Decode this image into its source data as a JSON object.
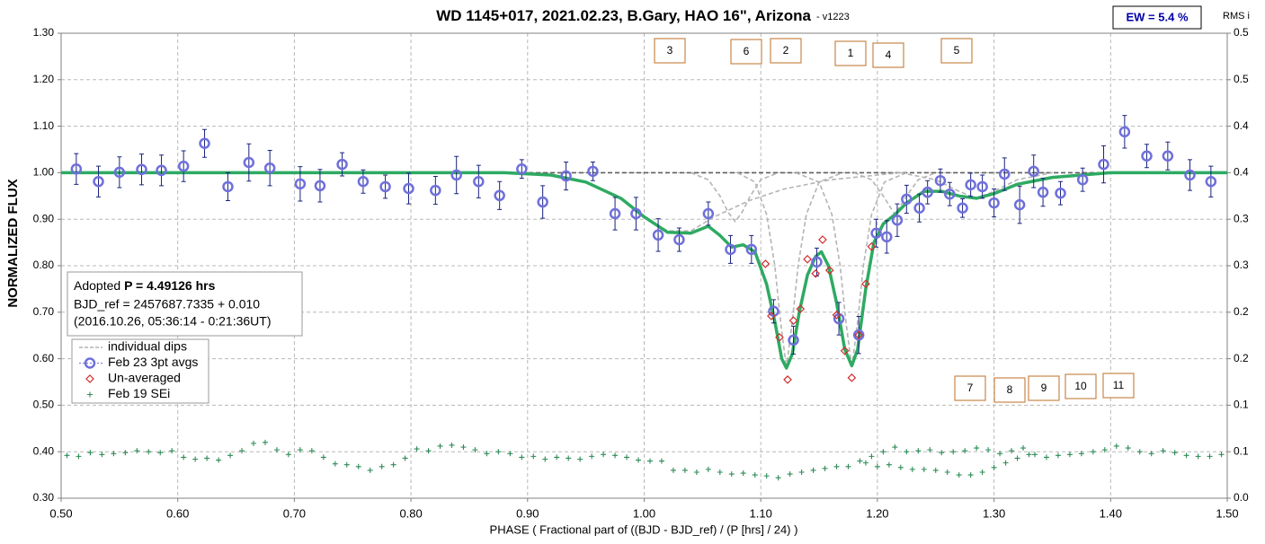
{
  "chart_data": {
    "type": "scatter",
    "title": "WD 1145+017, 2021.02.23, B.Gary, HAO 16\", Arizona",
    "title_suffix": "-  v1223",
    "ew_label": "EW = 5.4 %",
    "y2_label": "RMS i",
    "y_label": "NORMALIZED FLUX",
    "x_label": "PHASE ( Fractional part of ((BJD - BJD_ref) / (P [hrs] / 24) )",
    "info": {
      "adopted": "Adopted ",
      "period": "P = 4.49126 hrs",
      "bjd_ref": "BJD_ref = 2457687.7335 + 0.010",
      "date": "(2016.10.26, 05:36:14 - 0:21:36UT)"
    },
    "dip_labels": [
      "3",
      "6",
      "2",
      "1",
      "4",
      "5",
      "7",
      "8",
      "9",
      "10",
      "11"
    ],
    "grid": true,
    "legend": "lower left",
    "xlim": [
      0.5,
      1.5
    ],
    "xticks": [
      {
        "value": 0.5,
        "label": "0.50"
      },
      {
        "value": 0.6,
        "label": "0.60"
      },
      {
        "value": 0.7,
        "label": "0.70"
      },
      {
        "value": 0.8,
        "label": "0.80"
      },
      {
        "value": 0.9,
        "label": "0.90"
      },
      {
        "value": 1.0,
        "label": "1.00"
      },
      {
        "value": 1.1,
        "label": "1.10"
      },
      {
        "value": 1.2,
        "label": "1.20"
      },
      {
        "value": 1.3,
        "label": "1.30"
      },
      {
        "value": 1.4,
        "label": "1.40"
      },
      {
        "value": 1.5,
        "label": "1.50"
      }
    ],
    "ylim": [
      0.3,
      1.3
    ],
    "yticks": [
      {
        "value": 0.3,
        "label": "0.30"
      },
      {
        "value": 0.4,
        "label": "0.40"
      },
      {
        "value": 0.5,
        "label": "0.50"
      },
      {
        "value": 0.6,
        "label": "0.60"
      },
      {
        "value": 0.7,
        "label": "0.70"
      },
      {
        "value": 0.8,
        "label": "0.80"
      },
      {
        "value": 0.9,
        "label": "0.90"
      },
      {
        "value": 1.0,
        "label": "1.00"
      },
      {
        "value": 1.1,
        "label": "1.10"
      },
      {
        "value": 1.2,
        "label": "1.20"
      },
      {
        "value": 1.3,
        "label": "1.30"
      }
    ],
    "y2lim": [
      0,
      0.5
    ],
    "y2ticks": [
      {
        "value": 0,
        "label": "0.0"
      },
      {
        "value": 0.05,
        "label": "0.1"
      },
      {
        "value": 0.1,
        "label": "0.1"
      },
      {
        "value": 0.15,
        "label": "0.2"
      },
      {
        "value": 0.2,
        "label": "0.2"
      },
      {
        "value": 0.25,
        "label": "0.3"
      },
      {
        "value": 0.3,
        "label": "0.3"
      },
      {
        "value": 0.35,
        "label": "0.4"
      },
      {
        "value": 0.4,
        "label": "0.4"
      },
      {
        "value": 0.45,
        "label": "0.5"
      },
      {
        "value": 0.5,
        "label": "0.5"
      }
    ],
    "series": [
      {
        "color": "#606060",
        "mode": "dashed",
        "x": [
          0.5,
          1.5
        ],
        "values": [
          1.0,
          1.0
        ]
      },
      {
        "name": "individual dips",
        "color": "#b4b4b4",
        "mode": "dashed",
        "x": [
          0.88,
          0.92,
          0.95,
          0.98,
          1.0,
          1.02,
          1.04,
          1.06,
          1.09,
          1.12,
          1.16,
          1.22,
          null,
          1.04,
          1.055,
          1.065,
          1.072,
          1.078,
          1.084,
          1.091,
          1.1,
          1.115,
          null,
          1.08,
          1.095,
          1.105,
          1.112,
          1.117,
          1.122,
          1.127,
          1.132,
          1.139,
          1.15,
          1.17,
          null,
          1.13,
          1.15,
          1.161,
          1.168,
          1.173,
          1.178,
          1.183,
          1.188,
          1.195,
          1.206,
          1.225,
          null,
          1.18,
          1.195,
          1.205,
          1.215,
          1.225,
          1.235,
          1.25,
          null,
          1.22,
          1.25,
          1.27,
          1.285,
          1.3,
          1.32,
          1.35
        ],
        "values": [
          1.0,
          0.995,
          0.98,
          0.945,
          0.905,
          0.875,
          0.875,
          0.905,
          0.94,
          0.965,
          0.985,
          1.0,
          null,
          1.0,
          0.985,
          0.95,
          0.915,
          0.895,
          0.915,
          0.95,
          0.985,
          1.0,
          null,
          1.0,
          0.98,
          0.91,
          0.8,
          0.68,
          0.58,
          0.68,
          0.8,
          0.91,
          0.98,
          1.0,
          null,
          1.0,
          0.98,
          0.91,
          0.8,
          0.68,
          0.58,
          0.68,
          0.8,
          0.91,
          0.98,
          1.0,
          null,
          1.0,
          0.985,
          0.95,
          0.91,
          0.95,
          0.985,
          1.0,
          null,
          1.0,
          0.985,
          0.96,
          0.945,
          0.96,
          0.985,
          1.0
        ]
      },
      {
        "color": "#2eaa62",
        "mode": "line",
        "x": [
          0.5,
          0.88,
          0.92,
          0.95,
          0.98,
          1.0,
          1.02,
          1.04,
          1.055,
          1.065,
          1.075,
          1.085,
          1.095,
          1.105,
          1.112,
          1.118,
          1.122,
          1.127,
          1.133,
          1.14,
          1.147,
          1.152,
          1.158,
          1.165,
          1.172,
          1.178,
          1.183,
          1.19,
          1.197,
          1.205,
          1.215,
          1.225,
          1.24,
          1.255,
          1.27,
          1.285,
          1.3,
          1.32,
          1.35,
          1.4,
          1.5
        ],
        "values": [
          1.0,
          1.0,
          0.995,
          0.98,
          0.945,
          0.905,
          0.872,
          0.87,
          0.885,
          0.865,
          0.84,
          0.845,
          0.83,
          0.76,
          0.68,
          0.6,
          0.58,
          0.61,
          0.7,
          0.78,
          0.82,
          0.83,
          0.8,
          0.72,
          0.62,
          0.585,
          0.62,
          0.75,
          0.85,
          0.89,
          0.91,
          0.935,
          0.96,
          0.96,
          0.95,
          0.945,
          0.955,
          0.975,
          0.99,
          1.0,
          1.0
        ]
      },
      {
        "name": "Feb 23 3pt avgs",
        "color": "#6f6fdc",
        "error_color": "#1a237e",
        "mode": "circle",
        "x": [
          0.513,
          0.532,
          0.55,
          0.569,
          0.586,
          0.605,
          0.623,
          0.643,
          0.661,
          0.679,
          0.705,
          0.722,
          0.741,
          0.759,
          0.778,
          0.798,
          0.821,
          0.839,
          0.858,
          0.876,
          0.895,
          0.913,
          0.933,
          0.956,
          0.975,
          0.993,
          1.012,
          1.03,
          1.055,
          1.074,
          1.092,
          1.111,
          1.128,
          1.148,
          1.167,
          1.184,
          1.199,
          1.208,
          1.217,
          1.225,
          1.236,
          1.243,
          1.254,
          1.262,
          1.273,
          1.28,
          1.29,
          1.3,
          1.309,
          1.322,
          1.334,
          1.342,
          1.357,
          1.376,
          1.394,
          1.412,
          1.431,
          1.449,
          1.468,
          1.486
        ],
        "values": [
          1.008,
          0.981,
          1.001,
          1.007,
          1.005,
          1.014,
          1.063,
          0.97,
          1.022,
          1.01,
          0.976,
          0.972,
          1.018,
          0.981,
          0.97,
          0.966,
          0.962,
          0.995,
          0.981,
          0.951,
          1.008,
          0.937,
          0.993,
          1.003,
          0.912,
          0.912,
          0.866,
          0.856,
          0.912,
          0.835,
          0.835,
          0.702,
          0.64,
          0.808,
          0.686,
          0.651,
          0.87,
          0.862,
          0.898,
          0.943,
          0.924,
          0.958,
          0.983,
          0.954,
          0.924,
          0.974,
          0.97,
          0.935,
          0.997,
          0.931,
          1.003,
          0.958,
          0.956,
          0.985,
          1.018,
          1.088,
          1.036,
          1.036,
          0.995,
          0.981
        ],
        "errors": [
          0.033,
          0.033,
          0.033,
          0.033,
          0.033,
          0.033,
          0.03,
          0.03,
          0.04,
          0.038,
          0.037,
          0.035,
          0.025,
          0.025,
          0.025,
          0.033,
          0.03,
          0.04,
          0.035,
          0.03,
          0.02,
          0.035,
          0.03,
          0.02,
          0.035,
          0.035,
          0.035,
          0.025,
          0.025,
          0.03,
          0.03,
          0.025,
          0.03,
          0.03,
          0.035,
          0.04,
          0.03,
          0.035,
          0.035,
          0.03,
          0.03,
          0.025,
          0.025,
          0.025,
          0.02,
          0.025,
          0.025,
          0.03,
          0.035,
          0.04,
          0.035,
          0.03,
          0.025,
          0.025,
          0.04,
          0.035,
          0.025,
          0.03,
          0.033,
          0.033
        ]
      },
      {
        "name": "Un-averaged",
        "color": "#d22d2d",
        "mode": "diamond",
        "x": [
          1.104,
          1.109,
          1.116,
          1.123,
          1.128,
          1.134,
          1.14,
          1.147,
          1.153,
          1.159,
          1.165,
          1.172,
          1.178,
          1.184,
          1.19,
          1.195
        ],
        "values": [
          0.804,
          0.692,
          0.646,
          0.555,
          0.682,
          0.707,
          0.814,
          0.783,
          0.856,
          0.79,
          0.694,
          0.617,
          0.559,
          0.651,
          0.761,
          0.841
        ]
      },
      {
        "name": "Feb 19 SEi",
        "color": "#2e8b57",
        "mode": "plus",
        "axis": "y2",
        "x": [
          0.505,
          0.515,
          0.525,
          0.535,
          0.545,
          0.555,
          0.565,
          0.575,
          0.585,
          0.595,
          0.605,
          0.615,
          0.625,
          0.635,
          0.645,
          0.655,
          0.665,
          0.675,
          0.685,
          0.695,
          0.705,
          0.715,
          0.725,
          0.735,
          0.745,
          0.755,
          0.765,
          0.775,
          0.785,
          0.795,
          0.805,
          0.815,
          0.825,
          0.835,
          0.845,
          0.855,
          0.865,
          0.875,
          0.885,
          0.895,
          0.905,
          0.915,
          0.925,
          0.935,
          0.945,
          0.955,
          0.965,
          0.975,
          0.985,
          0.995,
          1.005,
          1.015,
          1.025,
          1.035,
          1.045,
          1.055,
          1.065,
          1.075,
          1.085,
          1.095,
          1.105,
          1.115,
          1.125,
          1.135,
          1.145,
          1.155,
          1.165,
          1.175,
          1.185,
          1.195,
          1.205,
          1.215,
          1.225,
          1.235,
          1.245,
          1.255,
          1.265,
          1.275,
          1.285,
          1.295,
          1.305,
          1.315,
          1.325,
          1.335,
          1.345,
          1.355,
          1.365,
          1.375,
          1.385,
          1.395,
          1.405,
          1.415,
          1.425,
          1.435,
          1.445,
          1.455,
          1.465,
          1.475,
          1.485,
          1.495,
          1.19,
          1.2,
          1.21,
          1.22,
          1.23,
          1.24,
          1.25,
          1.26,
          1.27,
          1.28,
          1.29,
          1.3,
          1.31,
          1.32,
          1.33
        ],
        "values": [
          0.046,
          0.045,
          0.049,
          0.047,
          0.048,
          0.049,
          0.051,
          0.05,
          0.049,
          0.051,
          0.044,
          0.042,
          0.043,
          0.041,
          0.046,
          0.051,
          0.059,
          0.06,
          0.052,
          0.047,
          0.052,
          0.051,
          0.044,
          0.037,
          0.036,
          0.034,
          0.03,
          0.034,
          0.036,
          0.043,
          0.053,
          0.051,
          0.056,
          0.057,
          0.055,
          0.052,
          0.048,
          0.05,
          0.048,
          0.044,
          0.045,
          0.042,
          0.044,
          0.043,
          0.042,
          0.045,
          0.047,
          0.046,
          0.044,
          0.041,
          0.04,
          0.04,
          0.03,
          0.03,
          0.028,
          0.031,
          0.028,
          0.026,
          0.027,
          0.025,
          0.024,
          0.022,
          0.026,
          0.028,
          0.03,
          0.032,
          0.034,
          0.034,
          0.04,
          0.045,
          0.05,
          0.055,
          0.05,
          0.051,
          0.052,
          0.049,
          0.05,
          0.051,
          0.054,
          0.052,
          0.048,
          0.051,
          0.054,
          0.047,
          0.044,
          0.046,
          0.047,
          0.048,
          0.05,
          0.052,
          0.056,
          0.054,
          0.05,
          0.048,
          0.051,
          0.049,
          0.046,
          0.045,
          0.045,
          0.047,
          0.038,
          0.034,
          0.036,
          0.033,
          0.031,
          0.031,
          0.03,
          0.028,
          0.025,
          0.025,
          0.028,
          0.033,
          0.038,
          0.043,
          0.047
        ]
      }
    ]
  }
}
